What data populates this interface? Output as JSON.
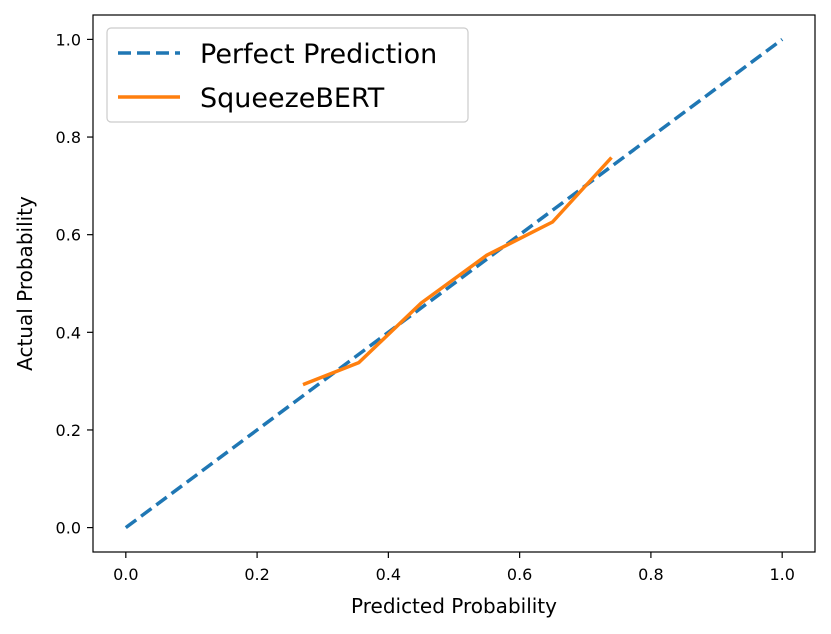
{
  "chart_data": {
    "type": "line",
    "title": "",
    "xlabel": "Predicted Probability",
    "ylabel": "Actual Probability",
    "xlim": [
      -0.05,
      1.05
    ],
    "ylim": [
      -0.05,
      1.05
    ],
    "xticks": [
      0.0,
      0.2,
      0.4,
      0.6,
      0.8,
      1.0
    ],
    "yticks": [
      0.0,
      0.2,
      0.4,
      0.6,
      0.8,
      1.0
    ],
    "xtick_labels": [
      "0.0",
      "0.2",
      "0.4",
      "0.6",
      "0.8",
      "1.0"
    ],
    "ytick_labels": [
      "0.0",
      "0.2",
      "0.4",
      "0.6",
      "0.8",
      "1.0"
    ],
    "grid": false,
    "legend_position": "upper-left",
    "series": [
      {
        "name": "Perfect Prediction",
        "style": "dashed",
        "color": "#1f77b4",
        "x": [
          0.0,
          1.0
        ],
        "y": [
          0.0,
          1.0
        ]
      },
      {
        "name": "SqueezeBERT",
        "style": "solid",
        "color": "#ff7f0e",
        "x": [
          0.27,
          0.355,
          0.45,
          0.55,
          0.65,
          0.74
        ],
        "y": [
          0.293,
          0.338,
          0.46,
          0.558,
          0.626,
          0.758
        ]
      }
    ]
  }
}
